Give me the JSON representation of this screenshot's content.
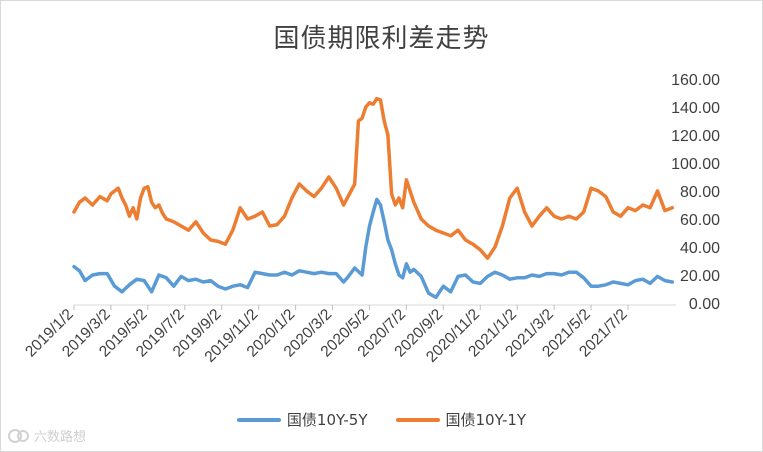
{
  "chart_data": {
    "type": "line",
    "title": "国债期限利差走势",
    "xlabel": "",
    "ylabel": "",
    "ylim": [
      0,
      160
    ],
    "y_ticks": [
      "0.00",
      "20.00",
      "40.00",
      "60.00",
      "80.00",
      "100.00",
      "120.00",
      "140.00",
      "160.00"
    ],
    "x_tick_labels": [
      "2019/1/2",
      "2019/3/2",
      "2019/5/2",
      "2019/7/2",
      "2019/9/2",
      "2019/11/2",
      "2020/1/2",
      "2020/3/2",
      "2020/5/2",
      "2020/7/2",
      "2020/9/2",
      "2020/11/2",
      "2021/1/2",
      "2021/3/2",
      "2021/5/2",
      "2021/7/2"
    ],
    "x_range": [
      0,
      16.3
    ],
    "series": [
      {
        "name": "国债10Y-5Y",
        "color": "#5b9bd5",
        "x": [
          0.0,
          0.15,
          0.3,
          0.5,
          0.7,
          0.9,
          1.1,
          1.3,
          1.5,
          1.7,
          1.9,
          2.1,
          2.3,
          2.5,
          2.7,
          2.9,
          3.1,
          3.3,
          3.5,
          3.7,
          3.9,
          4.1,
          4.3,
          4.5,
          4.7,
          4.9,
          5.1,
          5.3,
          5.5,
          5.7,
          5.9,
          6.1,
          6.3,
          6.5,
          6.7,
          6.9,
          7.1,
          7.3,
          7.4,
          7.6,
          7.8,
          7.9,
          8.0,
          8.1,
          8.2,
          8.3,
          8.4,
          8.5,
          8.6,
          8.7,
          8.8,
          8.9,
          9.0,
          9.1,
          9.2,
          9.4,
          9.6,
          9.8,
          10.0,
          10.2,
          10.4,
          10.6,
          10.8,
          11.0,
          11.2,
          11.4,
          11.6,
          11.8,
          12.0,
          12.2,
          12.4,
          12.6,
          12.8,
          13.0,
          13.2,
          13.4,
          13.6,
          13.8,
          14.0,
          14.2,
          14.4,
          14.6,
          14.8,
          15.0,
          15.2,
          15.4,
          15.6,
          15.8,
          16.0,
          16.2
        ],
        "values": [
          26,
          23,
          16,
          20,
          21,
          21,
          12,
          8,
          13,
          17,
          16,
          8,
          20,
          18,
          12,
          19,
          16,
          17,
          15,
          16,
          12,
          10,
          12,
          13,
          11,
          22,
          21,
          20,
          20,
          22,
          20,
          23,
          22,
          21,
          22,
          21,
          21,
          15,
          18,
          25,
          20,
          40,
          55,
          65,
          74,
          70,
          58,
          45,
          38,
          28,
          20,
          18,
          28,
          22,
          24,
          19,
          7,
          4,
          12,
          8,
          19,
          20,
          15,
          14,
          19,
          22,
          20,
          17,
          18,
          18,
          20,
          19,
          21,
          21,
          20,
          22,
          22,
          18,
          12,
          12,
          13,
          15,
          14,
          13,
          16,
          17,
          14,
          19,
          16,
          15
        ]
      },
      {
        "name": "国债10Y-1Y",
        "color": "#ed7d31",
        "x": [
          0.0,
          0.15,
          0.3,
          0.5,
          0.7,
          0.9,
          1.0,
          1.2,
          1.3,
          1.4,
          1.5,
          1.6,
          1.7,
          1.8,
          1.9,
          2.0,
          2.1,
          2.2,
          2.3,
          2.4,
          2.5,
          2.7,
          2.9,
          3.1,
          3.3,
          3.5,
          3.7,
          3.9,
          4.1,
          4.3,
          4.5,
          4.7,
          4.9,
          5.1,
          5.3,
          5.5,
          5.7,
          5.9,
          6.1,
          6.3,
          6.5,
          6.7,
          6.9,
          7.1,
          7.3,
          7.5,
          7.6,
          7.7,
          7.8,
          7.9,
          8.0,
          8.1,
          8.2,
          8.3,
          8.4,
          8.5,
          8.6,
          8.7,
          8.8,
          8.9,
          9.0,
          9.2,
          9.4,
          9.6,
          9.8,
          10.0,
          10.2,
          10.4,
          10.6,
          10.8,
          11.0,
          11.2,
          11.4,
          11.6,
          11.8,
          12.0,
          12.2,
          12.4,
          12.6,
          12.8,
          13.0,
          13.2,
          13.4,
          13.6,
          13.8,
          14.0,
          14.2,
          14.4,
          14.6,
          14.8,
          15.0,
          15.2,
          15.4,
          15.6,
          15.8,
          16.0,
          16.2
        ],
        "values": [
          65,
          72,
          75,
          70,
          76,
          73,
          78,
          82,
          75,
          70,
          62,
          68,
          60,
          75,
          82,
          83,
          72,
          68,
          70,
          64,
          60,
          58,
          55,
          52,
          58,
          50,
          45,
          44,
          42,
          52,
          68,
          60,
          62,
          65,
          55,
          56,
          62,
          75,
          85,
          80,
          76,
          82,
          90,
          82,
          70,
          80,
          85,
          130,
          132,
          140,
          143,
          142,
          146,
          145,
          130,
          120,
          78,
          70,
          75,
          68,
          88,
          72,
          60,
          55,
          52,
          50,
          48,
          52,
          45,
          42,
          38,
          32,
          40,
          55,
          75,
          82,
          65,
          55,
          62,
          68,
          62,
          60,
          62,
          60,
          65,
          82,
          80,
          76,
          65,
          62,
          68,
          66,
          70,
          68,
          80,
          66,
          68
        ]
      }
    ]
  },
  "watermark": {
    "text": "六数路想"
  }
}
